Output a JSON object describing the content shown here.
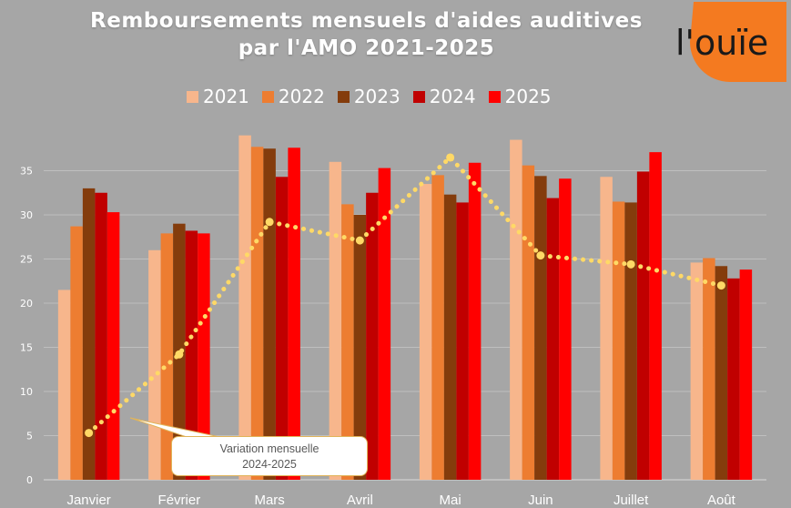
{
  "title": {
    "line1": "Remboursements mensuels d'aides auditives",
    "line2": "par l'AMO 2021-2025"
  },
  "logo": {
    "text": "l'ouïe",
    "color": "#f47a20"
  },
  "annotation": {
    "line1": "Variation mensuelle",
    "line2": "2024-2025"
  },
  "chart_data": {
    "type": "bar",
    "categories": [
      "Janvier",
      "Février",
      "Mars",
      "Avril",
      "Mai",
      "Juin",
      "Juillet",
      "Août"
    ],
    "series": [
      {
        "name": "2021",
        "color": "#f7b68c",
        "values": [
          21.5,
          26,
          39,
          36,
          33.5,
          38.5,
          34.3,
          24.6
        ]
      },
      {
        "name": "2022",
        "color": "#ed7d31",
        "values": [
          28.7,
          27.9,
          37.7,
          31.2,
          34.5,
          35.6,
          31.5,
          25.1
        ]
      },
      {
        "name": "2023",
        "color": "#843c0c",
        "values": [
          33,
          29,
          37.5,
          30,
          32.3,
          34.4,
          31.4,
          24.2
        ]
      },
      {
        "name": "2024",
        "color": "#c00000",
        "values": [
          32.5,
          28.2,
          34.3,
          32.5,
          31.4,
          31.9,
          34.9,
          22.8
        ]
      },
      {
        "name": "2025",
        "color": "#ff0000",
        "values": [
          30.3,
          27.9,
          37.6,
          35.3,
          35.9,
          34.1,
          37.1,
          23.8
        ]
      }
    ],
    "line_series": {
      "color": "#ffd966",
      "values": [
        5.3,
        14.2,
        29.2,
        27.1,
        36.5,
        25.4,
        24.4,
        22
      ]
    },
    "ylim": [
      0,
      40
    ],
    "yticks": [
      0,
      5,
      10,
      15,
      20,
      25,
      30,
      35
    ],
    "grid": true,
    "legend_position": "top"
  }
}
